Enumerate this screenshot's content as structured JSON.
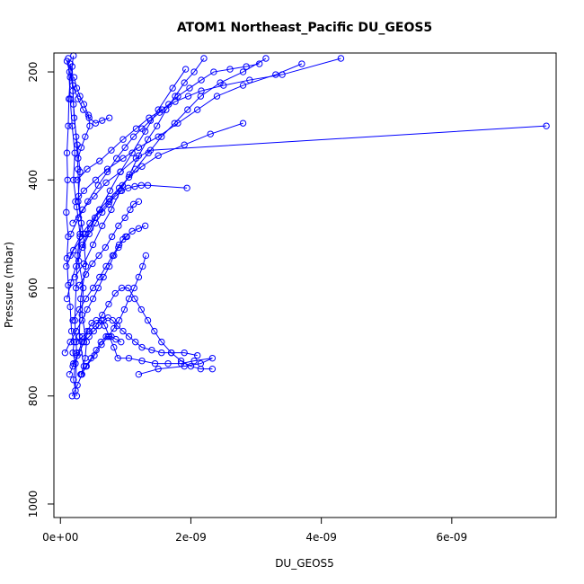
{
  "chart_data": {
    "type": "line",
    "title": "ATOM1 Northeast_Pacific DU_GEOS5",
    "xlabel": "DU_GEOS5",
    "ylabel": "Pressure (mbar)",
    "xlim": [
      -1e-10,
      7.6e-09
    ],
    "ylim": [
      1025,
      165
    ],
    "y_reversed": true,
    "grid": false,
    "legend": "none",
    "marker": "open-circle",
    "color": "#0000ff",
    "x_ticks": [
      {
        "value": 0,
        "label": "0e+00"
      },
      {
        "value": 2e-09,
        "label": "2e-09"
      },
      {
        "value": 4e-09,
        "label": "4e-09"
      },
      {
        "value": 6e-09,
        "label": "6e-09"
      }
    ],
    "y_ticks": [
      {
        "value": 200,
        "label": "200"
      },
      {
        "value": 400,
        "label": "400"
      },
      {
        "value": 600,
        "label": "600"
      },
      {
        "value": 800,
        "label": "800"
      },
      {
        "value": 1000,
        "label": "1000"
      }
    ],
    "series": [
      {
        "x": [
          2e-10,
          1.5e-10,
          1.3e-10,
          1.2e-10,
          1e-10,
          1.1e-10,
          9e-11,
          1.2e-10,
          1e-10,
          1.2e-10,
          1.5e-10,
          1.7e-10,
          2.1e-10,
          1.9e-10,
          2.3e-10,
          2e-10,
          2.5e-10
        ],
        "y": [
          170,
          210,
          250,
          300,
          350,
          400,
          460,
          505,
          545,
          595,
          635,
          680,
          700,
          720,
          740,
          770,
          800
        ]
      },
      {
        "x": [
          1.2e-10,
          1.5e-10,
          1.8e-10,
          2.2e-10,
          2e-10,
          2.5e-10,
          3e-10,
          2.8e-10,
          3.5e-10,
          3.3e-10,
          4e-10,
          3.8e-10,
          3.2e-10
        ],
        "y": [
          175,
          250,
          300,
          350,
          400,
          450,
          500,
          550,
          600,
          650,
          700,
          730,
          760
        ]
      },
      {
        "x": [
          1.8e-10,
          2e-10,
          2.4e-10,
          2.7e-10,
          2.8e-10,
          3.2e-10,
          2.6e-10,
          2.4e-10,
          2.2e-10,
          2.5e-10,
          2.3e-10
        ],
        "y": [
          190,
          260,
          320,
          380,
          430,
          480,
          540,
          600,
          660,
          720,
          790
        ]
      },
      {
        "x": [
          1.5e-10,
          1.9e-10,
          2.1e-10,
          2.6e-10,
          3e-10,
          2.7e-10,
          3.5e-10,
          3.9e-10,
          3.1e-10,
          2.9e-10,
          3.6e-10
        ],
        "y": [
          185,
          235,
          285,
          335,
          385,
          440,
          500,
          560,
          620,
          690,
          745
        ]
      },
      {
        "x": [
          1.4e-10,
          1.9e-10,
          2.6e-10,
          3.3e-10,
          4.1e-10,
          4.8e-10,
          5.5e-10,
          6.3e-10,
          6.8e-10,
          7.5e-10,
          8.2e-10,
          8.8e-10,
          1.05e-09,
          1.25e-09,
          1.45e-09,
          1.65e-09,
          1.85e-09,
          2.05e-09,
          2.33e-09,
          2.15e-09,
          1.9e-09,
          1.5e-09,
          1.2e-09
        ],
        "y": [
          760,
          745,
          725,
          700,
          680,
          665,
          660,
          660,
          670,
          690,
          710,
          730,
          730,
          735,
          740,
          740,
          740,
          735,
          730,
          740,
          745,
          750,
          760
        ]
      },
      {
        "x": [
          2e-10,
          2.9e-10,
          3.6e-10,
          4.4e-10,
          5.1e-10,
          5.9e-10,
          6.6e-10,
          7.3e-10,
          8e-10,
          8.7e-10,
          9.6e-10,
          1.05e-09,
          1.15e-09,
          1.25e-09,
          1.4e-09,
          1.55e-09,
          1.7e-09,
          1.9e-09,
          2.1e-09
        ],
        "y": [
          740,
          720,
          700,
          690,
          680,
          670,
          660,
          655,
          660,
          670,
          680,
          690,
          700,
          710,
          715,
          720,
          720,
          720,
          725
        ]
      },
      {
        "x": [
          2.4e-10,
          3.4e-10,
          4.4e-10,
          5.4e-10,
          6.4e-10,
          7.4e-10,
          8.4e-10,
          9.4e-10,
          1.04e-09,
          1.14e-09,
          1.24e-09,
          1.34e-09,
          1.44e-09,
          1.55e-09,
          1.7e-09,
          1.85e-09,
          2e-09,
          2.15e-09,
          2.33e-09
        ],
        "y": [
          700,
          690,
          680,
          670,
          650,
          630,
          610,
          600,
          600,
          620,
          640,
          660,
          680,
          700,
          720,
          735,
          745,
          750,
          750
        ]
      },
      {
        "x": [
          1.9e-10,
          2.9e-10,
          3.9e-10,
          5e-10,
          6e-10,
          7e-10,
          8e-10,
          9e-10,
          1e-09,
          1.1e-09,
          1.2e-09,
          1.3e-09
        ],
        "y": [
          660,
          640,
          620,
          600,
          580,
          560,
          540,
          520,
          505,
          495,
          490,
          485
        ]
      },
      {
        "x": [
          2.9e-10,
          3.9e-10,
          4.9e-10,
          5.9e-10,
          6.9e-10,
          7.9e-10,
          8.9e-10,
          9.9e-10,
          1.07e-09,
          1.12e-09,
          1.2e-09
        ],
        "y": [
          595,
          575,
          555,
          540,
          525,
          505,
          485,
          470,
          455,
          445,
          440
        ]
      },
      {
        "x": [
          3.4e-10,
          4.4e-10,
          5.4e-10,
          6.4e-10,
          7.4e-10,
          8.4e-10,
          9.4e-10,
          1.04e-09,
          1.14e-09,
          1.24e-09,
          1.34e-09,
          1.94e-09
        ],
        "y": [
          525,
          500,
          480,
          460,
          445,
          430,
          420,
          415,
          412,
          410,
          410,
          415
        ]
      },
      {
        "x": [
          1.5e-10,
          3e-10,
          4.5e-10,
          6e-10,
          7.5e-10,
          9e-10,
          1.05e-09,
          1.25e-09,
          1.5e-09,
          1.9e-09,
          2.3e-09,
          2.8e-09
        ],
        "y": [
          540,
          505,
          480,
          455,
          435,
          415,
          395,
          375,
          355,
          335,
          315,
          295
        ]
      },
      {
        "x": [
          1.9e-10,
          3.4e-10,
          5.2e-10,
          7e-10,
          9.2e-10,
          1.16e-09,
          1.38e-09,
          7.45e-09
        ],
        "y": [
          480,
          455,
          430,
          405,
          385,
          360,
          345,
          300
        ]
      },
      {
        "x": [
          2.3e-10,
          3.6e-10,
          5.4e-10,
          7.2e-10,
          9.6e-10,
          1.2e-09,
          1.5e-09,
          1.8e-09,
          2.1e-09,
          2.4e-09,
          2.8e-09,
          3.3e-09,
          3.7e-09
        ],
        "y": [
          440,
          420,
          400,
          380,
          360,
          340,
          320,
          295,
          270,
          245,
          225,
          205,
          185
        ]
      },
      {
        "x": [
          2.6e-10,
          4.1e-10,
          6e-10,
          7.8e-10,
          9.6e-10,
          1.16e-09,
          1.36e-09,
          1.56e-09,
          1.76e-09,
          1.96e-09,
          2.16e-09,
          2.5e-09,
          2.9e-09,
          3.4e-09,
          4.3e-09
        ],
        "y": [
          400,
          380,
          365,
          345,
          325,
          305,
          285,
          270,
          255,
          245,
          235,
          225,
          215,
          205,
          175
        ]
      },
      {
        "x": [
          9e-11,
          2e-10,
          3.8e-10,
          5.3e-10,
          7.5e-10,
          9.5e-10,
          1.15e-09,
          1.35e-09,
          1.55e-09,
          1.75e-09,
          1.95e-09,
          2.15e-09,
          2.45e-09,
          2.8e-09,
          3.15e-09
        ],
        "y": [
          560,
          530,
          500,
          470,
          440,
          410,
          380,
          350,
          320,
          295,
          270,
          245,
          220,
          200,
          175
        ]
      },
      {
        "x": [
          1e-10,
          1.6e-10,
          2.4e-10,
          3.4e-10,
          4.6e-10,
          6e-10,
          7.6e-10,
          9.2e-10,
          1.1e-09,
          1.3e-09,
          1.5e-09,
          1.72e-09,
          1.92e-09
        ],
        "y": [
          620,
          590,
          560,
          520,
          490,
          455,
          420,
          385,
          350,
          310,
          270,
          230,
          195
        ]
      },
      {
        "x": [
          2.2e-10,
          3.6e-10,
          5e-10,
          6.4e-10,
          7.8e-10,
          9.2e-10,
          1.06e-09,
          1.2e-09,
          1.34e-09,
          1.48e-09,
          1.62e-09,
          1.76e-09,
          1.9e-09,
          2.05e-09,
          2.2e-09
        ],
        "y": [
          580,
          555,
          520,
          485,
          455,
          420,
          390,
          355,
          325,
          300,
          270,
          245,
          220,
          200,
          175
        ]
      },
      {
        "x": [
          1.6e-10,
          2.8e-10,
          4.2e-10,
          5.8e-10,
          7.2e-10,
          8.6e-10,
          9.9e-10,
          1.12e-09,
          1.25e-09,
          1.38e-09,
          1.52e-09,
          1.66e-09,
          1.8e-09,
          1.98e-09,
          2.16e-09,
          2.35e-09,
          2.6e-09,
          2.85e-09,
          3.05e-09
        ],
        "y": [
          500,
          470,
          440,
          410,
          385,
          360,
          340,
          320,
          305,
          290,
          275,
          260,
          245,
          230,
          215,
          200,
          195,
          190,
          185
        ]
      },
      {
        "x": [
          7e-11,
          1.5e-10,
          2.4e-10,
          3.3e-10,
          4.1e-10,
          5e-10,
          5.8e-10,
          6.6e-10,
          7.5e-10,
          8.2e-10,
          8.9e-10,
          9.6e-10,
          1.02e-09
        ],
        "y": [
          720,
          700,
          680,
          660,
          640,
          620,
          600,
          580,
          560,
          540,
          525,
          510,
          505
        ]
      },
      {
        "x": [
          3.1e-10,
          4e-10,
          5.2e-10,
          6.3e-10,
          7.3e-10,
          8.2e-10,
          9e-10,
          9.8e-10,
          1.05e-09,
          1.13e-09,
          1.2e-09,
          1.26e-09,
          1.31e-09
        ],
        "y": [
          760,
          745,
          725,
          705,
          690,
          675,
          660,
          640,
          620,
          600,
          580,
          560,
          540
        ]
      },
      {
        "x": [
          1.8e-10,
          2.6e-10,
          3.3e-10,
          3.9e-10,
          4.7e-10,
          5.5e-10,
          6.2e-10,
          7e-10,
          7.8e-10,
          8.5e-10,
          9.3e-10
        ],
        "y": [
          800,
          780,
          760,
          745,
          730,
          715,
          700,
          690,
          690,
          695,
          700
        ]
      },
      {
        "x": [
          2.1e-10,
          2.5e-10,
          3e-10,
          3.6e-10,
          4.3e-10,
          4.5e-10,
          3.8e-10,
          3.2e-10,
          2.7e-10
        ],
        "y": [
          210,
          230,
          245,
          260,
          280,
          300,
          320,
          340,
          360
        ]
      },
      {
        "x": [
          1e-10,
          1.4e-10,
          1.9e-10,
          2.7e-10,
          3.5e-10,
          4.4e-10,
          5.4e-10,
          6.4e-10,
          7.5e-10
        ],
        "y": [
          180,
          200,
          225,
          250,
          270,
          285,
          295,
          290,
          285
        ]
      }
    ]
  }
}
